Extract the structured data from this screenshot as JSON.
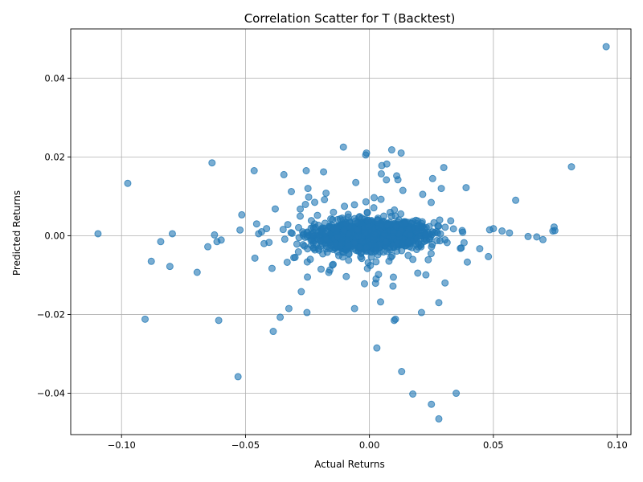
{
  "chart_data": {
    "type": "scatter",
    "title": "Correlation Scatter for T (Backtest)",
    "xlabel": "Actual Returns",
    "ylabel": "Predicted Returns",
    "xlim": [
      -0.1205,
      0.1055
    ],
    "ylim": [
      -0.0505,
      0.0525
    ],
    "xticks": [
      -0.1,
      -0.05,
      0.0,
      0.05,
      0.1
    ],
    "xtick_labels": [
      "−0.10",
      "−0.05",
      "0.00",
      "0.05",
      "0.10"
    ],
    "yticks": [
      -0.04,
      -0.02,
      0.0,
      0.02,
      0.04
    ],
    "ytick_labels": [
      "−0.04",
      "−0.02",
      "0.00",
      "0.02",
      "0.04"
    ],
    "grid": true,
    "color": "#1f77b4",
    "outliers": [
      [
        -0.1095,
        0.0005
      ],
      [
        -0.0975,
        0.0133
      ],
      [
        -0.0905,
        -0.0212
      ],
      [
        -0.088,
        -0.0065
      ],
      [
        -0.0842,
        -0.0015
      ],
      [
        -0.0805,
        -0.0078
      ],
      [
        -0.0795,
        0.0005
      ],
      [
        -0.0695,
        -0.0093
      ],
      [
        -0.0652,
        -0.0028
      ],
      [
        -0.0635,
        0.0185
      ],
      [
        -0.0625,
        0.0002
      ],
      [
        -0.0615,
        -0.0015
      ],
      [
        -0.0608,
        -0.0215
      ],
      [
        -0.0598,
        -0.0011
      ],
      [
        -0.053,
        -0.0358
      ],
      [
        -0.0515,
        0.0053
      ],
      [
        -0.0465,
        0.0165
      ],
      [
        -0.0462,
        -0.0057
      ],
      [
        -0.0455,
        0.003
      ],
      [
        -0.0447,
        0.0005
      ],
      [
        -0.0435,
        0.001
      ],
      [
        -0.0425,
        -0.002
      ],
      [
        -0.0415,
        0.0018
      ],
      [
        -0.0405,
        -0.0017
      ],
      [
        -0.0393,
        -0.0083
      ],
      [
        -0.0388,
        -0.0243
      ],
      [
        -0.038,
        0.0068
      ],
      [
        -0.036,
        -0.0207
      ],
      [
        -0.0345,
        0.0155
      ],
      [
        -0.0325,
        -0.0185
      ],
      [
        -0.0315,
        0.0112
      ],
      [
        -0.03,
        -0.0055
      ],
      [
        -0.0275,
        -0.0142
      ],
      [
        -0.0255,
        0.0165
      ],
      [
        -0.0252,
        -0.0195
      ],
      [
        -0.025,
        -0.0105
      ],
      [
        -0.0248,
        0.012
      ],
      [
        -0.0245,
        0.0098
      ],
      [
        -0.0195,
        -0.0085
      ],
      [
        -0.0185,
        0.0162
      ],
      [
        -0.0175,
        0.0108
      ],
      [
        -0.0105,
        0.0225
      ],
      [
        -0.006,
        -0.0185
      ],
      [
        -0.0055,
        0.0135
      ],
      [
        -0.002,
        -0.0122
      ],
      [
        -0.0015,
        0.0205
      ],
      [
        -0.0012,
        0.021
      ],
      [
        0.003,
        -0.0285
      ],
      [
        0.0045,
        -0.0168
      ],
      [
        0.0048,
        0.0157
      ],
      [
        0.005,
        0.0178
      ],
      [
        0.007,
        0.0182
      ],
      [
        0.009,
        0.0218
      ],
      [
        0.0095,
        -0.0128
      ],
      [
        0.01,
        -0.0215
      ],
      [
        0.0105,
        -0.0212
      ],
      [
        0.011,
        0.0152
      ],
      [
        0.0115,
        0.0142
      ],
      [
        0.0128,
        0.021
      ],
      [
        0.013,
        -0.0345
      ],
      [
        0.0135,
        0.0115
      ],
      [
        0.0175,
        -0.0402
      ],
      [
        0.0195,
        -0.0095
      ],
      [
        0.021,
        -0.0195
      ],
      [
        0.0215,
        0.0105
      ],
      [
        0.025,
        -0.0428
      ],
      [
        0.0255,
        0.0145
      ],
      [
        0.028,
        -0.017
      ],
      [
        0.028,
        -0.0465
      ],
      [
        0.029,
        0.012
      ],
      [
        0.03,
        0.0173
      ],
      [
        0.0305,
        -0.012
      ],
      [
        0.035,
        -0.04
      ],
      [
        0.039,
        0.0122
      ],
      [
        0.0395,
        -0.0067
      ],
      [
        0.0445,
        -0.0033
      ],
      [
        0.048,
        -0.0053
      ],
      [
        0.0485,
        0.0015
      ],
      [
        0.05,
        0.0018
      ],
      [
        0.0535,
        0.0012
      ],
      [
        0.0565,
        0.0007
      ],
      [
        0.059,
        0.009
      ],
      [
        0.064,
        -0.0002
      ],
      [
        0.0675,
        -0.0003
      ],
      [
        0.07,
        -0.001
      ],
      [
        0.074,
        0.0012
      ],
      [
        0.0745,
        0.0022
      ],
      [
        0.0748,
        0.0013
      ],
      [
        0.0815,
        0.0175
      ],
      [
        0.0955,
        0.048
      ]
    ]
  }
}
